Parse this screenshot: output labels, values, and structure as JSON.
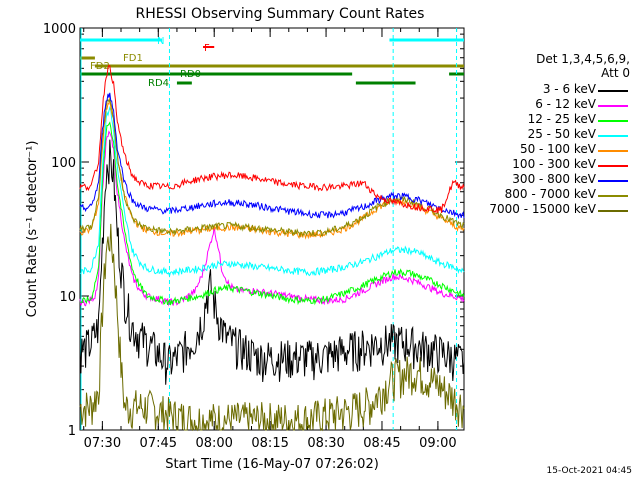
{
  "chart_data": {
    "type": "line",
    "title": "RHESSI Observing Summary Count Rates",
    "xlabel": "Start Time (16-May-07 07:26:02)",
    "ylabel": "Count Rate (s⁻¹ detector⁻¹)",
    "yscale": "log",
    "ylim": [
      1,
      1000
    ],
    "xlim_minutes": [
      -6,
      97
    ],
    "x_ticks": [
      {
        "label": "07:30",
        "min": 0
      },
      {
        "label": "07:45",
        "min": 15
      },
      {
        "label": "08:00",
        "min": 30
      },
      {
        "label": "08:15",
        "min": 45
      },
      {
        "label": "08:30",
        "min": 60
      },
      {
        "label": "08:45",
        "min": 75
      },
      {
        "label": "09:00",
        "min": 90
      }
    ],
    "y_ticks": [
      {
        "label": "1000",
        "v": 1000
      },
      {
        "label": "100",
        "v": 100
      },
      {
        "label": "10",
        "v": 10
      },
      {
        "label": "1",
        "v": 1
      }
    ],
    "legend": {
      "header": [
        "Det 1,3,4,5,6,9,",
        "Att 0"
      ],
      "position": "right"
    },
    "flag_labels": [
      {
        "label": "N",
        "color": "#00ffff"
      },
      {
        "label": "F",
        "color": "#ff0000"
      },
      {
        "label": "FD1",
        "color": "#8b8b00"
      },
      {
        "label": "FD2",
        "color": "#8b8b00"
      },
      {
        "label": "RD0",
        "color": "#008000"
      },
      {
        "label": "RD4",
        "color": "#008000"
      }
    ],
    "vertical_markers_minutes": [
      18,
      78,
      95
    ],
    "series": [
      {
        "name": "3 - 6 keV",
        "color": "#000000",
        "x": [
          -6,
          -5,
          -3,
          -1,
          0,
          1,
          2,
          3,
          4,
          6,
          8,
          10,
          12,
          14,
          16,
          18,
          20,
          22,
          25,
          27,
          28,
          29,
          30,
          31,
          32,
          33,
          35,
          38,
          42,
          46,
          50,
          55,
          60,
          66,
          70,
          74,
          78,
          82,
          85,
          88,
          91,
          94,
          97
        ],
        "y": [
          4,
          4,
          4.5,
          6,
          25,
          90,
          110,
          80,
          30,
          10,
          6,
          5,
          4.5,
          4,
          3.5,
          3.2,
          3.5,
          4,
          5,
          7,
          10,
          12,
          9,
          7,
          6,
          5,
          4.5,
          4,
          3.5,
          3.5,
          3.5,
          3.5,
          3.6,
          4,
          4.2,
          4.5,
          4.6,
          4.5,
          4.2,
          4,
          3.8,
          3.5,
          3.2
        ]
      },
      {
        "name": "6 - 12 keV",
        "color": "#ff00ff",
        "x": [
          -6,
          -4,
          -2,
          -1,
          0,
          1,
          2,
          3,
          4,
          6,
          8,
          10,
          12,
          15,
          18,
          20,
          22,
          25,
          27,
          29,
          30,
          31,
          32,
          34,
          36,
          40,
          45,
          50,
          55,
          60,
          65,
          70,
          74,
          78,
          82,
          85,
          88,
          91,
          94,
          97
        ],
        "y": [
          9,
          9,
          10,
          14,
          60,
          140,
          170,
          120,
          60,
          25,
          14,
          11,
          10,
          9.5,
          9,
          9,
          9.5,
          11,
          15,
          25,
          32,
          24,
          16,
          12,
          11,
          11,
          10.5,
          10,
          9.5,
          9.2,
          9.5,
          11,
          12.5,
          14,
          13.5,
          12.5,
          11.5,
          10.5,
          10,
          9.5
        ]
      },
      {
        "name": "12 - 25 keV",
        "color": "#00ff00",
        "x": [
          -6,
          -3,
          -1,
          0,
          1,
          2,
          3,
          4,
          6,
          8,
          10,
          12,
          15,
          18,
          22,
          26,
          30,
          34,
          38,
          42,
          46,
          50,
          55,
          60,
          65,
          70,
          74,
          78,
          82,
          85,
          88,
          91,
          94,
          97
        ],
        "y": [
          9,
          9.5,
          16,
          70,
          170,
          200,
          140,
          70,
          30,
          16,
          12,
          10,
          9.5,
          9,
          9.5,
          10,
          11,
          11.5,
          11,
          10.5,
          10,
          9.5,
          9.2,
          9.5,
          10.5,
          12,
          13.5,
          15,
          15,
          14,
          13,
          12,
          11,
          10
        ]
      },
      {
        "name": "25 - 50 keV",
        "color": "#00ffff",
        "x": [
          -6,
          -3,
          -1,
          0,
          1,
          2,
          3,
          4,
          6,
          8,
          10,
          12,
          15,
          18,
          22,
          26,
          30,
          34,
          38,
          42,
          46,
          50,
          55,
          60,
          65,
          70,
          74,
          78,
          82,
          85,
          88,
          91,
          94,
          97
        ],
        "y": [
          15,
          16,
          25,
          90,
          210,
          260,
          170,
          90,
          40,
          22,
          18,
          16,
          15.5,
          15,
          15.5,
          16,
          17,
          17.5,
          17,
          16.5,
          16,
          15.5,
          15,
          15.5,
          16.5,
          18,
          20,
          22,
          22,
          21,
          19,
          17.5,
          16.5,
          15
        ]
      },
      {
        "name": "50 - 100 keV",
        "color": "#ff8c00",
        "x": [
          -6,
          -3,
          -1,
          0,
          1,
          2,
          3,
          4,
          6,
          8,
          10,
          12,
          15,
          18,
          22,
          26,
          30,
          34,
          38,
          42,
          46,
          50,
          55,
          60,
          65,
          70,
          74,
          78,
          82,
          85,
          88,
          91,
          94,
          97
        ],
        "y": [
          30,
          31,
          50,
          130,
          250,
          290,
          200,
          110,
          55,
          38,
          33,
          31,
          30,
          29,
          30,
          31,
          32,
          32.5,
          32,
          31,
          30,
          29,
          28.5,
          29,
          32,
          38,
          46,
          52,
          50,
          46,
          42,
          38,
          34,
          31
        ]
      },
      {
        "name": "100 - 300 keV",
        "color": "#ff0000",
        "x": [
          -6,
          -3,
          -1,
          0,
          1,
          2,
          3,
          4,
          6,
          8,
          10,
          12,
          15,
          18,
          22,
          26,
          30,
          34,
          38,
          42,
          46,
          50,
          55,
          60,
          65,
          70,
          74,
          78,
          82,
          85,
          88,
          91,
          94,
          97
        ],
        "y": [
          65,
          66,
          100,
          250,
          450,
          520,
          380,
          200,
          110,
          80,
          70,
          67,
          66,
          65,
          70,
          75,
          78,
          80,
          78,
          75,
          71,
          68,
          66,
          65,
          66,
          70,
          55,
          50,
          48,
          46,
          45,
          44,
          70,
          65
        ]
      },
      {
        "name": "300 - 800 keV",
        "color": "#0000ff",
        "x": [
          -6,
          -3,
          -1,
          0,
          1,
          2,
          3,
          4,
          6,
          8,
          10,
          12,
          15,
          18,
          22,
          26,
          30,
          34,
          38,
          42,
          46,
          50,
          55,
          60,
          65,
          70,
          74,
          78,
          82,
          85,
          88,
          91,
          94,
          97
        ],
        "y": [
          45,
          46,
          70,
          170,
          300,
          320,
          240,
          130,
          70,
          52,
          47,
          45,
          44,
          43,
          45,
          47,
          49,
          50,
          49,
          47,
          45,
          43,
          41,
          40,
          42,
          46,
          52,
          56,
          55,
          52,
          48,
          45,
          42,
          40
        ]
      },
      {
        "name": "800 - 7000 keV",
        "color": "#8b8b00",
        "x": [
          -6,
          -3,
          -1,
          0,
          1,
          2,
          3,
          4,
          6,
          8,
          10,
          12,
          15,
          18,
          22,
          26,
          30,
          34,
          38,
          42,
          46,
          50,
          55,
          60,
          65,
          70,
          74,
          78,
          82,
          85,
          88,
          91,
          94,
          97
        ],
        "y": [
          32,
          33,
          55,
          150,
          270,
          300,
          210,
          110,
          55,
          38,
          34,
          32,
          31,
          30,
          31,
          32,
          33,
          33.5,
          33,
          32,
          31,
          30,
          29.5,
          30,
          33,
          39,
          47,
          53,
          52,
          48,
          44,
          40,
          36,
          33
        ]
      },
      {
        "name": "7000 - 15000 keV",
        "color": "#6b6b00",
        "x": [
          -6,
          -3,
          -1,
          0,
          1,
          2,
          3,
          4,
          5,
          6,
          8,
          12,
          18,
          24,
          30,
          36,
          42,
          48,
          54,
          60,
          66,
          72,
          78,
          84,
          90,
          97
        ],
        "y": [
          1.5,
          1.5,
          2,
          8,
          22,
          28,
          20,
          8,
          3,
          1.5,
          1.5,
          1.5,
          1.3,
          1.2,
          1.2,
          1.2,
          1.2,
          1.2,
          1.2,
          1.3,
          1.4,
          1.6,
          2.5,
          2.8,
          2.2,
          1.5
        ]
      }
    ],
    "grid": false
  },
  "credit": "15-Oct-2021 04:45"
}
